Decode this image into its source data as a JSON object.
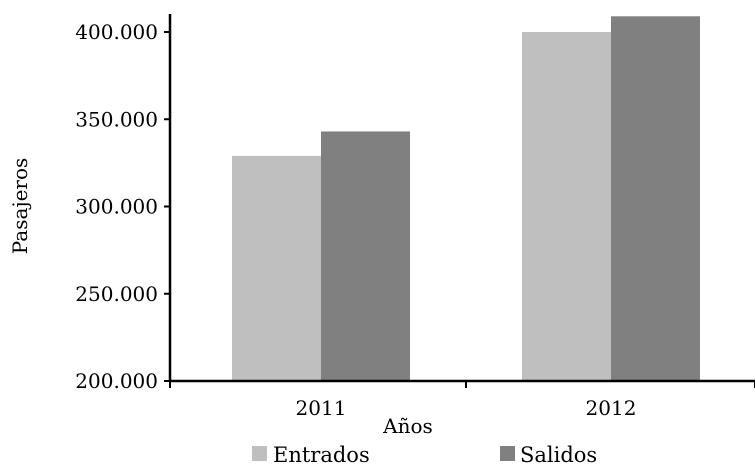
{
  "chart_data": {
    "type": "bar",
    "title": "",
    "xlabel": "Años",
    "ylabel": "Pasajeros",
    "categories": [
      "2011",
      "2012"
    ],
    "series": [
      {
        "name": "Entrados",
        "color": "#bfbfbf",
        "values": [
          329000,
          400000
        ]
      },
      {
        "name": "Salidos",
        "color": "#808080",
        "values": [
          343000,
          409000
        ]
      }
    ],
    "ylim": [
      200000,
      410000
    ],
    "yticks": [
      200000,
      250000,
      300000,
      350000,
      400000
    ],
    "ytick_labels": [
      "200.000",
      "250.000",
      "300.000",
      "350.000",
      "400.000"
    ],
    "grid": false,
    "legend_position": "bottom"
  }
}
